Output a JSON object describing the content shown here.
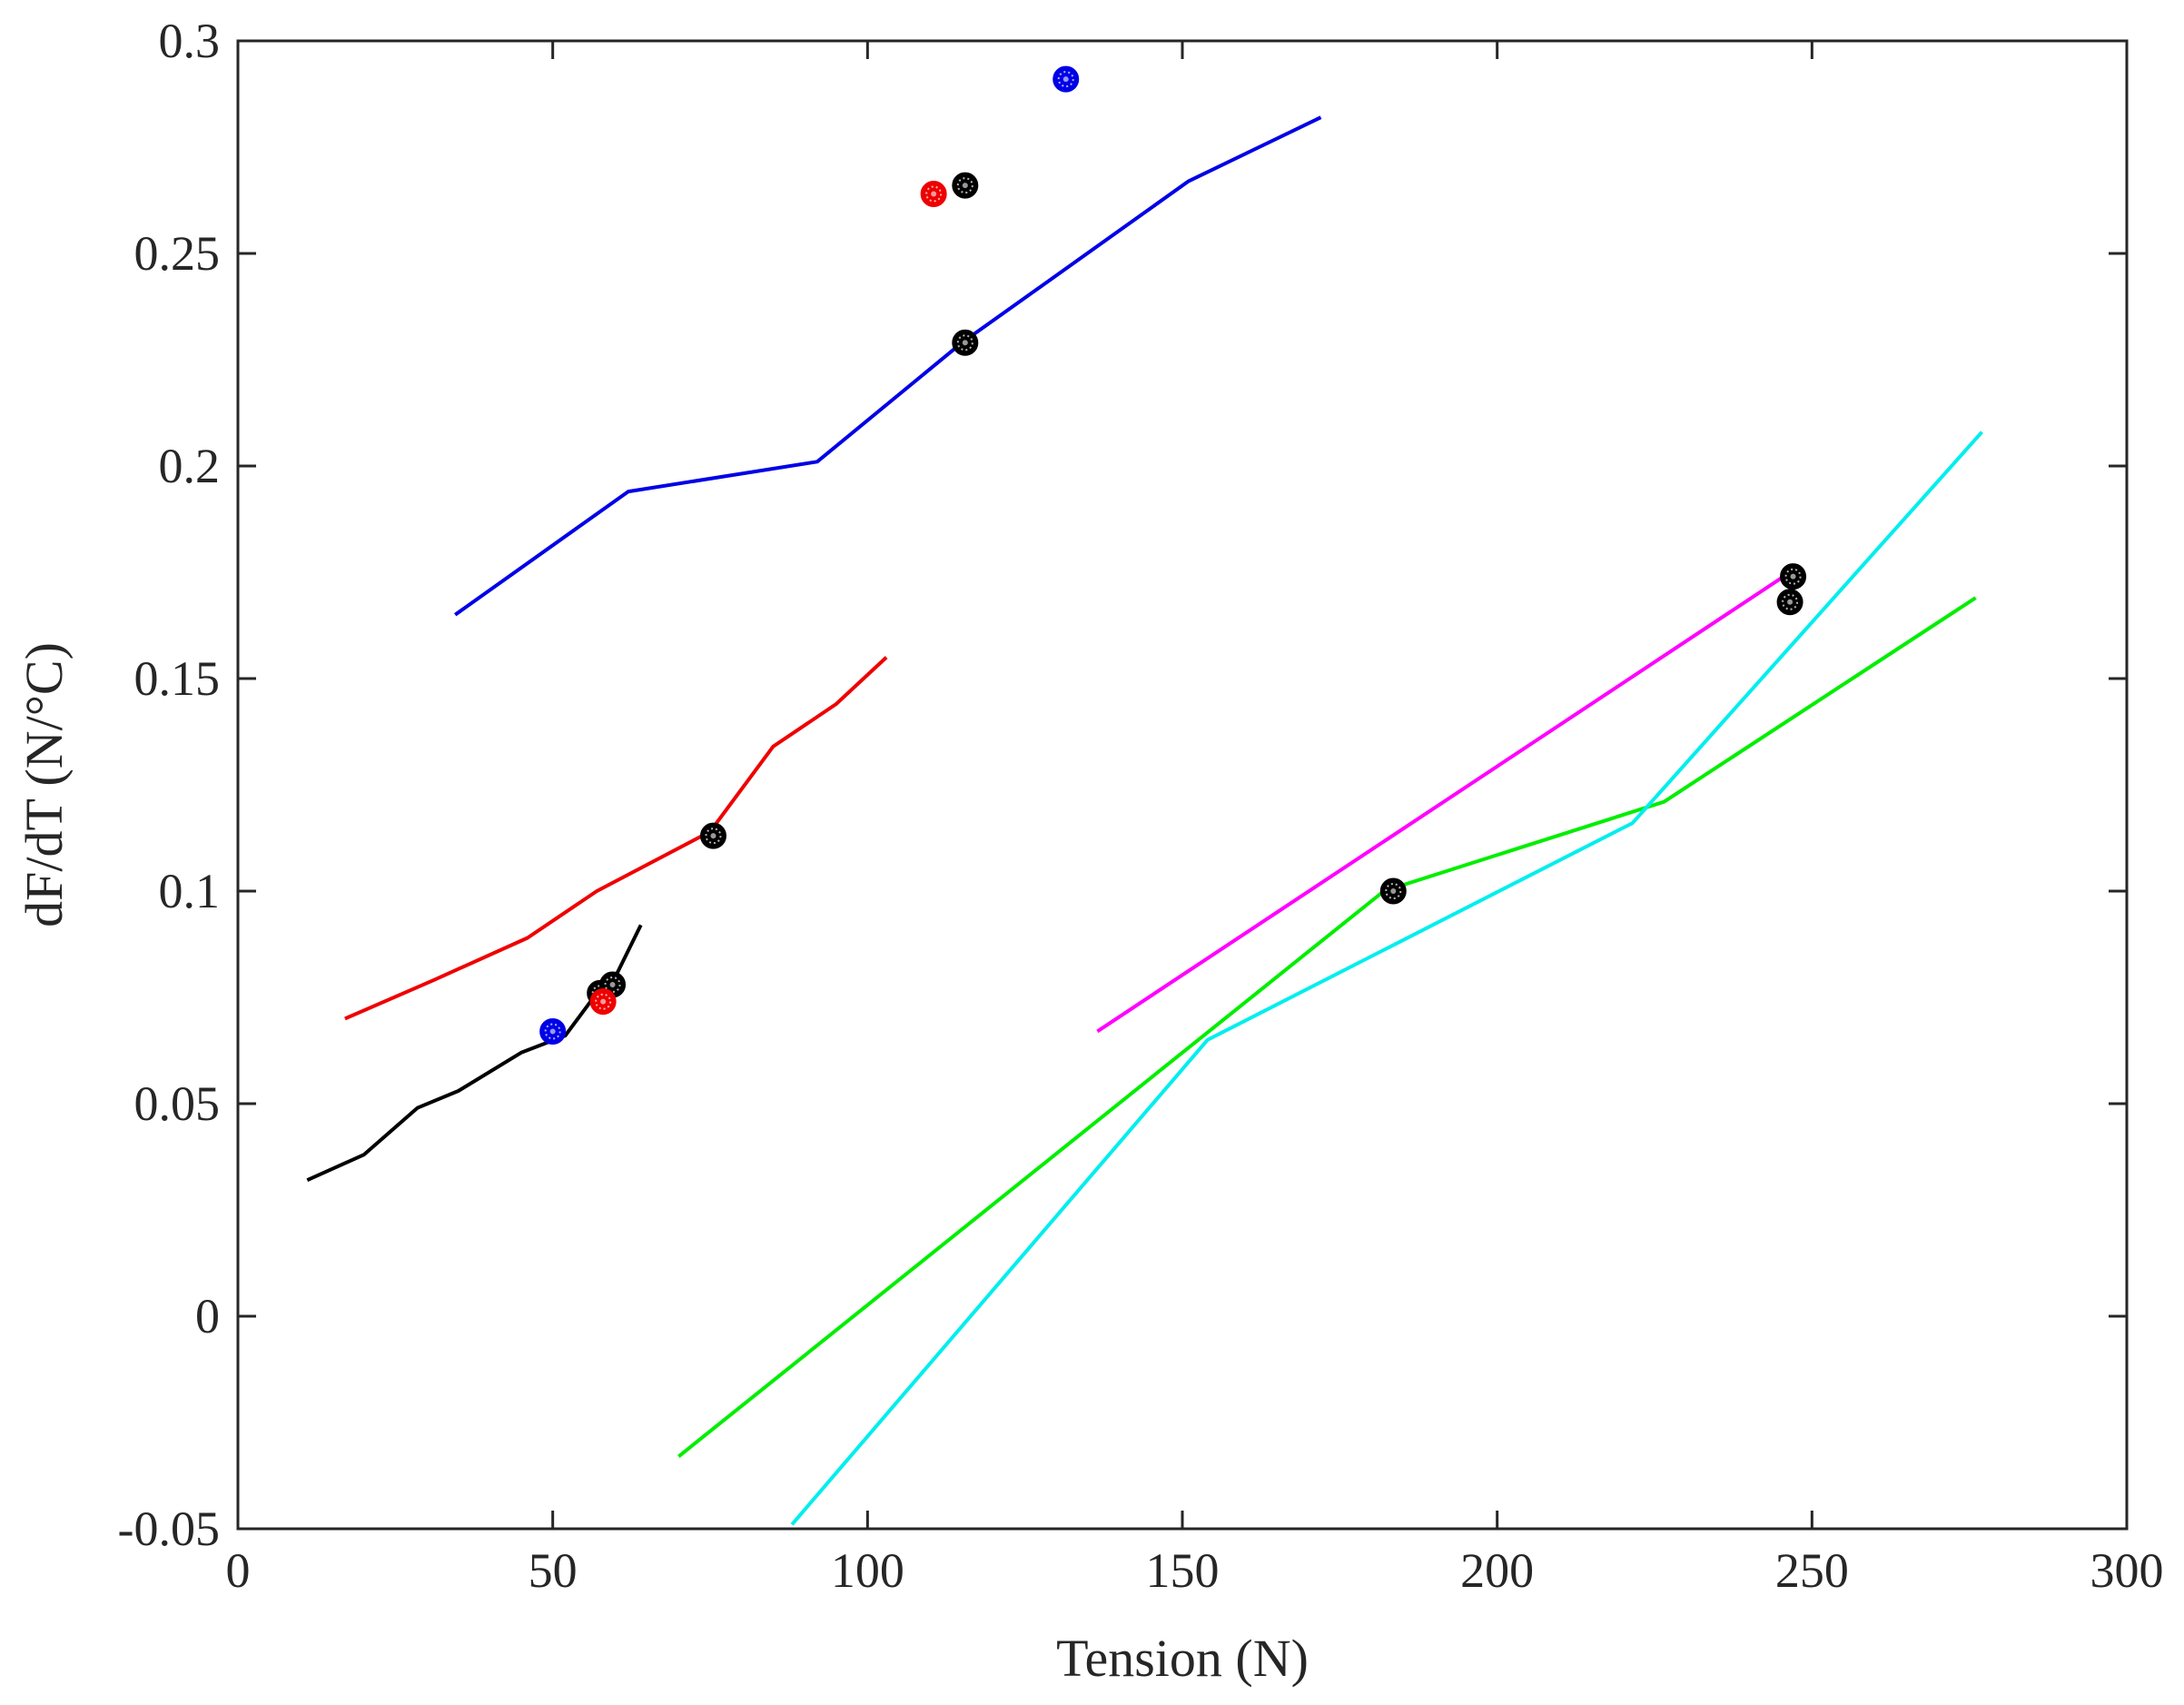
{
  "chart_data": {
    "type": "line",
    "title": "",
    "xlabel": "Tension (N)",
    "ylabel": "dF/dT (N/°C)",
    "xlim": [
      0,
      300
    ],
    "ylim": [
      -0.05,
      0.3
    ],
    "xticks": [
      0,
      50,
      100,
      150,
      200,
      250,
      300
    ],
    "xtick_labels": [
      "0",
      "50",
      "100",
      "150",
      "200",
      "250",
      "300"
    ],
    "yticks": [
      -0.05,
      0,
      0.05,
      0.1,
      0.15,
      0.2,
      0.25,
      0.3
    ],
    "ytick_labels": [
      "-0.05",
      "0",
      "0.05",
      "0.1",
      "0.15",
      "0.2",
      "0.25",
      "0.3"
    ],
    "grid": false,
    "series": [
      {
        "name": "blue",
        "color": "#0000e6",
        "points": [
          [
            34.5,
            0.165
          ],
          [
            62,
            0.194
          ],
          [
            92,
            0.201
          ],
          [
            115,
            0.229
          ],
          [
            151,
            0.267
          ],
          [
            172,
            0.282
          ]
        ]
      },
      {
        "name": "red",
        "color": "#ef0000",
        "points": [
          [
            17,
            0.07
          ],
          [
            31,
            0.079
          ],
          [
            46,
            0.089
          ],
          [
            57,
            0.1
          ],
          [
            75,
            0.114
          ],
          [
            85,
            0.134
          ],
          [
            95,
            0.144
          ],
          [
            103,
            0.155
          ]
        ]
      },
      {
        "name": "black",
        "color": "#000000",
        "points": [
          [
            11,
            0.032
          ],
          [
            20,
            0.038
          ],
          [
            28.5,
            0.049
          ],
          [
            35,
            0.053
          ],
          [
            45,
            0.062
          ],
          [
            52,
            0.066
          ],
          [
            57,
            0.076
          ],
          [
            60,
            0.08
          ],
          [
            64,
            0.092
          ]
        ]
      },
      {
        "name": "magenta",
        "color": "#ff00ff",
        "points": [
          [
            136.5,
            0.067
          ],
          [
            245.5,
            0.174
          ]
        ]
      },
      {
        "name": "green",
        "color": "#00ee00",
        "points": [
          [
            70,
            -0.033
          ],
          [
            182,
            0.1
          ],
          [
            226.5,
            0.121
          ],
          [
            276,
            0.169
          ]
        ]
      },
      {
        "name": "cyan",
        "color": "#00eeee",
        "points": [
          [
            88,
            -0.049
          ],
          [
            154,
            0.065
          ],
          [
            221.5,
            0.116
          ],
          [
            277,
            0.208
          ]
        ]
      }
    ],
    "markers": [
      {
        "x": 131.5,
        "y": 0.291,
        "color": "#0000e6"
      },
      {
        "x": 110.5,
        "y": 0.264,
        "color": "#ef0000"
      },
      {
        "x": 115.5,
        "y": 0.266,
        "color": "#000000"
      },
      {
        "x": 115.5,
        "y": 0.229,
        "color": "#000000"
      },
      {
        "x": 75.5,
        "y": 0.113,
        "color": "#000000"
      },
      {
        "x": 57.5,
        "y": 0.076,
        "color": "#000000"
      },
      {
        "x": 59.5,
        "y": 0.078,
        "color": "#000000"
      },
      {
        "x": 58,
        "y": 0.074,
        "color": "#ef0000"
      },
      {
        "x": 50,
        "y": 0.067,
        "color": "#0000e6"
      },
      {
        "x": 183.5,
        "y": 0.1,
        "color": "#000000"
      },
      {
        "x": 247,
        "y": 0.174,
        "color": "#000000"
      },
      {
        "x": 246.5,
        "y": 0.168,
        "color": "#000000"
      }
    ]
  }
}
